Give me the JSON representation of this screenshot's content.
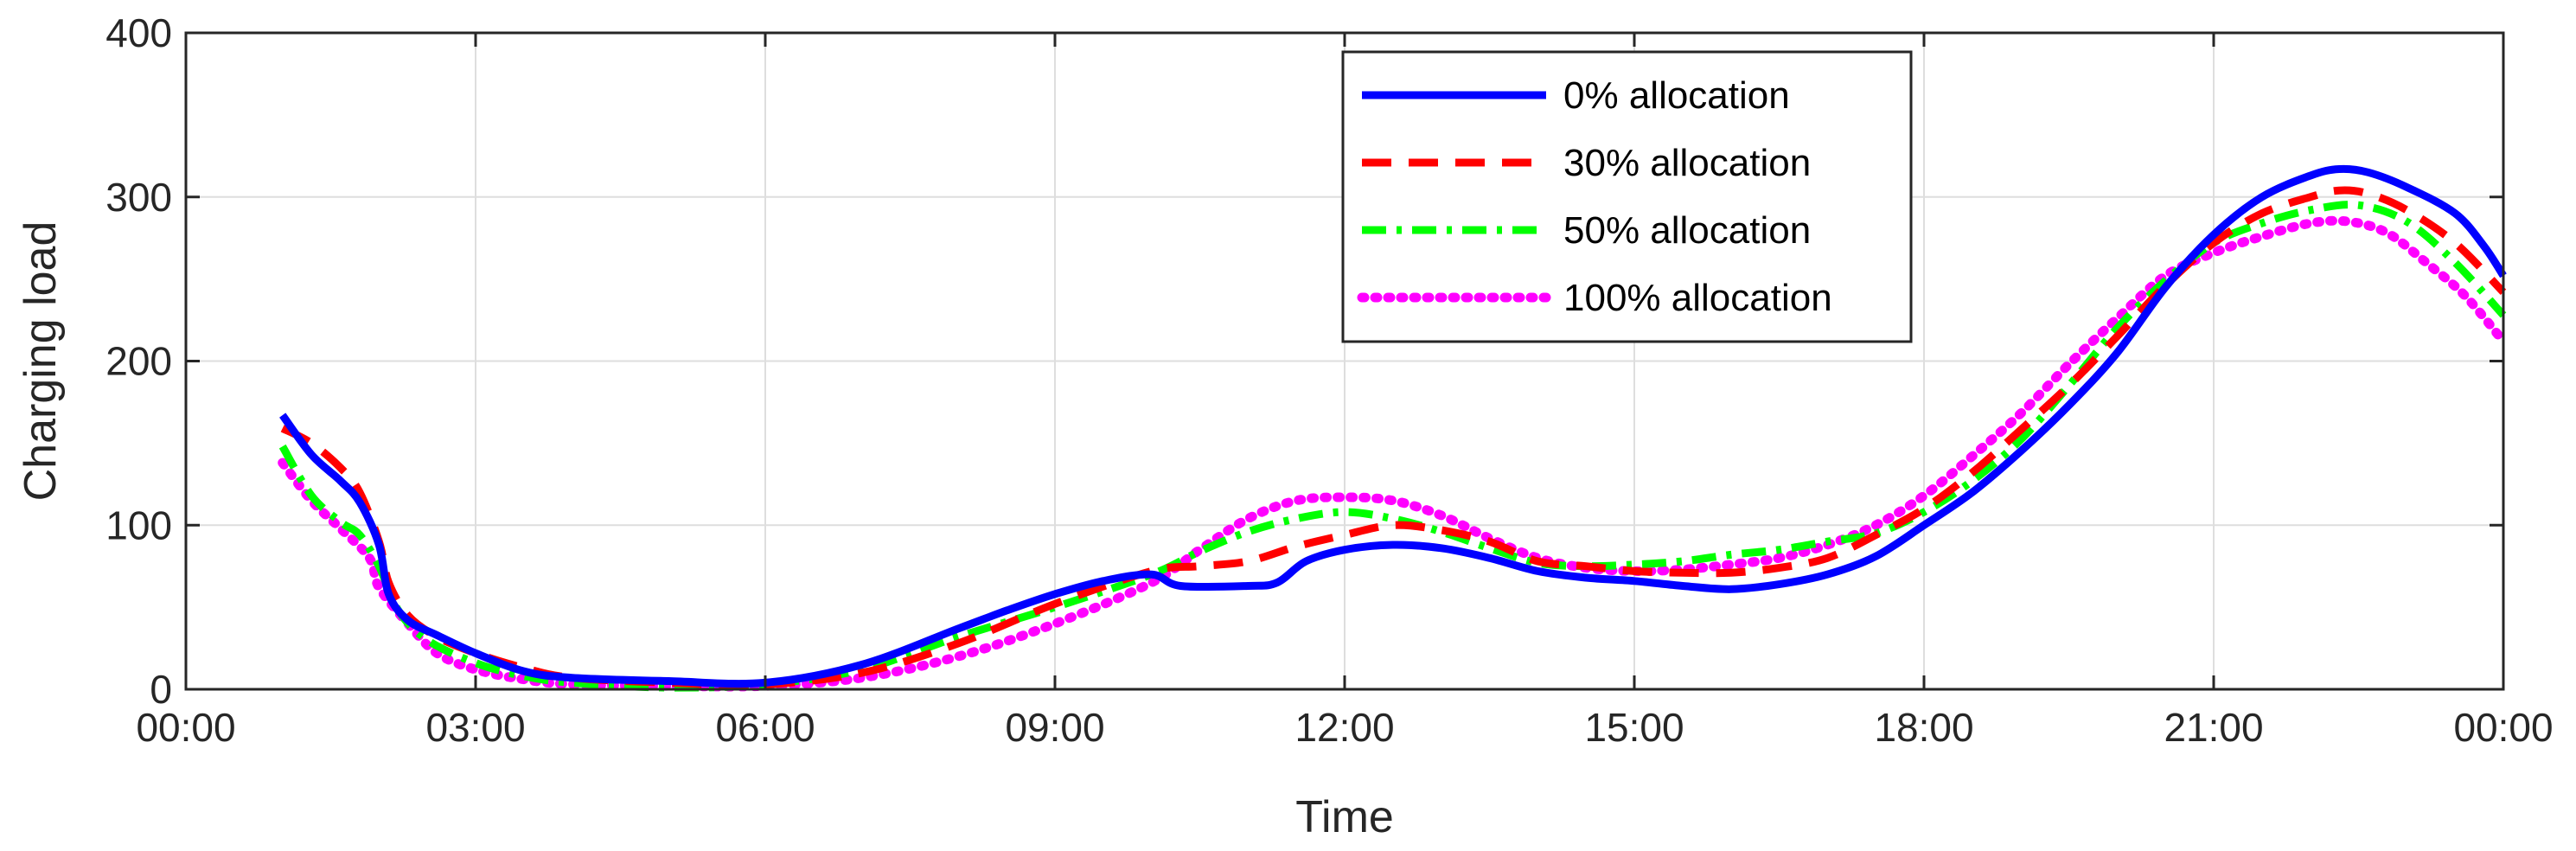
{
  "chart_data": {
    "type": "line",
    "title": "",
    "xlabel": "Time",
    "ylabel": "Charging load",
    "xlim": [
      0,
      24
    ],
    "ylim": [
      0,
      400
    ],
    "x_ticks": [
      "00:00",
      "03:00",
      "06:00",
      "09:00",
      "12:00",
      "15:00",
      "18:00",
      "21:00",
      "00:00"
    ],
    "y_ticks": [
      "0",
      "100",
      "200",
      "300",
      "400"
    ],
    "grid": true,
    "legend_position": "top-right",
    "series": [
      {
        "name": "0% allocation",
        "color": "#0000ff",
        "dash": "solid",
        "points": [
          [
            1.0,
            167
          ],
          [
            1.3,
            143
          ],
          [
            1.6,
            127
          ],
          [
            1.8,
            114
          ],
          [
            2.0,
            88
          ],
          [
            2.1,
            58
          ],
          [
            2.3,
            42
          ],
          [
            2.6,
            33
          ],
          [
            3.0,
            22
          ],
          [
            3.5,
            11
          ],
          [
            4.0,
            7
          ],
          [
            5.0,
            5
          ],
          [
            6.0,
            4
          ],
          [
            7.0,
            15
          ],
          [
            8.0,
            37
          ],
          [
            8.5,
            48
          ],
          [
            9.0,
            58
          ],
          [
            9.5,
            66
          ],
          [
            10.0,
            70
          ],
          [
            10.3,
            63
          ],
          [
            11.0,
            63
          ],
          [
            11.3,
            65
          ],
          [
            11.6,
            78
          ],
          [
            12.0,
            85
          ],
          [
            12.5,
            88
          ],
          [
            13.0,
            86
          ],
          [
            13.5,
            80
          ],
          [
            14.0,
            72
          ],
          [
            14.5,
            68
          ],
          [
            15.0,
            66
          ],
          [
            15.5,
            63
          ],
          [
            16.0,
            61
          ],
          [
            16.5,
            64
          ],
          [
            17.0,
            70
          ],
          [
            17.5,
            81
          ],
          [
            18.0,
            100
          ],
          [
            18.5,
            120
          ],
          [
            19.0,
            145
          ],
          [
            19.5,
            173
          ],
          [
            20.0,
            205
          ],
          [
            20.5,
            245
          ],
          [
            21.0,
            277
          ],
          [
            21.5,
            300
          ],
          [
            22.0,
            313
          ],
          [
            22.3,
            317
          ],
          [
            22.6,
            315
          ],
          [
            23.0,
            306
          ],
          [
            23.5,
            290
          ],
          [
            23.8,
            270
          ],
          [
            24.0,
            252
          ]
        ]
      },
      {
        "name": "30% allocation",
        "color": "#ff0000",
        "dash": "dashed",
        "points": [
          [
            1.0,
            159
          ],
          [
            1.3,
            150
          ],
          [
            1.6,
            135
          ],
          [
            1.8,
            120
          ],
          [
            2.0,
            90
          ],
          [
            2.1,
            65
          ],
          [
            2.3,
            45
          ],
          [
            2.6,
            32
          ],
          [
            3.0,
            22
          ],
          [
            3.5,
            13
          ],
          [
            4.0,
            7
          ],
          [
            5.0,
            4
          ],
          [
            6.0,
            3
          ],
          [
            7.0,
            10
          ],
          [
            8.0,
            28
          ],
          [
            9.0,
            52
          ],
          [
            10.0,
            72
          ],
          [
            10.5,
            75
          ],
          [
            11.0,
            78
          ],
          [
            11.5,
            87
          ],
          [
            12.0,
            94
          ],
          [
            12.5,
            100
          ],
          [
            13.0,
            97
          ],
          [
            13.5,
            90
          ],
          [
            14.0,
            78
          ],
          [
            14.5,
            75
          ],
          [
            15.0,
            72
          ],
          [
            15.5,
            71
          ],
          [
            16.0,
            71
          ],
          [
            16.5,
            74
          ],
          [
            17.0,
            80
          ],
          [
            17.5,
            94
          ],
          [
            18.0,
            110
          ],
          [
            18.5,
            132
          ],
          [
            19.0,
            158
          ],
          [
            19.5,
            185
          ],
          [
            20.0,
            215
          ],
          [
            20.5,
            246
          ],
          [
            21.0,
            272
          ],
          [
            21.5,
            290
          ],
          [
            22.0,
            300
          ],
          [
            22.3,
            304
          ],
          [
            22.6,
            302
          ],
          [
            23.0,
            292
          ],
          [
            23.5,
            272
          ],
          [
            24.0,
            242
          ]
        ]
      },
      {
        "name": "50% allocation",
        "color": "#00ff00",
        "dash": "dashdot",
        "points": [
          [
            1.0,
            148
          ],
          [
            1.3,
            118
          ],
          [
            1.6,
            102
          ],
          [
            1.8,
            94
          ],
          [
            2.0,
            75
          ],
          [
            2.2,
            48
          ],
          [
            2.5,
            30
          ],
          [
            3.0,
            16
          ],
          [
            3.5,
            8
          ],
          [
            4.0,
            4
          ],
          [
            5.0,
            1
          ],
          [
            6.0,
            3
          ],
          [
            7.0,
            12
          ],
          [
            8.0,
            32
          ],
          [
            9.0,
            50
          ],
          [
            10.0,
            70
          ],
          [
            10.5,
            84
          ],
          [
            11.0,
            96
          ],
          [
            11.5,
            104
          ],
          [
            12.0,
            108
          ],
          [
            12.5,
            104
          ],
          [
            13.0,
            96
          ],
          [
            13.5,
            86
          ],
          [
            14.0,
            77
          ],
          [
            14.5,
            75
          ],
          [
            15.0,
            76
          ],
          [
            15.5,
            78
          ],
          [
            16.0,
            82
          ],
          [
            16.5,
            85
          ],
          [
            17.0,
            90
          ],
          [
            17.5,
            95
          ],
          [
            18.0,
            108
          ],
          [
            18.5,
            127
          ],
          [
            19.0,
            152
          ],
          [
            19.5,
            185
          ],
          [
            20.0,
            220
          ],
          [
            20.5,
            249
          ],
          [
            21.0,
            272
          ],
          [
            21.5,
            284
          ],
          [
            22.0,
            292
          ],
          [
            22.5,
            295
          ],
          [
            23.0,
            285
          ],
          [
            23.5,
            260
          ],
          [
            24.0,
            228
          ]
        ]
      },
      {
        "name": "100% allocation",
        "color": "#ff00ff",
        "dash": "dotted",
        "points": [
          [
            1.0,
            138
          ],
          [
            1.3,
            115
          ],
          [
            1.6,
            98
          ],
          [
            1.9,
            80
          ],
          [
            2.0,
            62
          ],
          [
            2.3,
            40
          ],
          [
            2.6,
            22
          ],
          [
            3.0,
            12
          ],
          [
            3.5,
            6
          ],
          [
            4.0,
            3
          ],
          [
            5.0,
            2
          ],
          [
            6.0,
            2
          ],
          [
            7.0,
            7
          ],
          [
            8.0,
            20
          ],
          [
            9.0,
            40
          ],
          [
            10.0,
            65
          ],
          [
            10.5,
            85
          ],
          [
            11.0,
            104
          ],
          [
            11.5,
            115
          ],
          [
            12.0,
            117
          ],
          [
            12.5,
            115
          ],
          [
            13.0,
            106
          ],
          [
            13.5,
            92
          ],
          [
            14.0,
            80
          ],
          [
            14.5,
            74
          ],
          [
            15.0,
            72
          ],
          [
            15.5,
            73
          ],
          [
            16.0,
            76
          ],
          [
            16.5,
            80
          ],
          [
            17.0,
            88
          ],
          [
            17.5,
            100
          ],
          [
            18.0,
            118
          ],
          [
            18.5,
            142
          ],
          [
            19.0,
            168
          ],
          [
            19.5,
            198
          ],
          [
            20.0,
            226
          ],
          [
            20.5,
            252
          ],
          [
            21.0,
            266
          ],
          [
            21.5,
            276
          ],
          [
            22.0,
            284
          ],
          [
            22.4,
            285
          ],
          [
            22.8,
            278
          ],
          [
            23.2,
            260
          ],
          [
            23.6,
            240
          ],
          [
            24.0,
            212
          ]
        ]
      }
    ]
  }
}
